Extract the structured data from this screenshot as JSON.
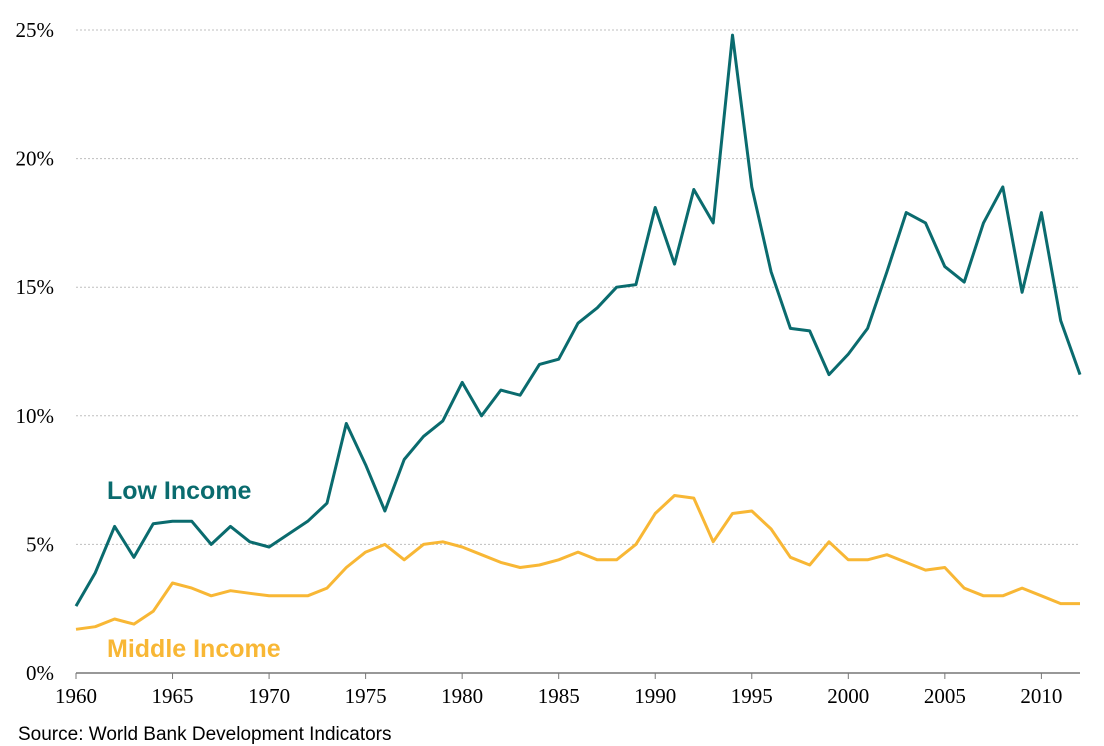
{
  "chart_data": {
    "type": "line",
    "source": "Source: World Bank Development Indicators",
    "x": [
      1960,
      1961,
      1962,
      1963,
      1964,
      1965,
      1966,
      1967,
      1968,
      1969,
      1970,
      1971,
      1972,
      1973,
      1974,
      1975,
      1976,
      1977,
      1978,
      1979,
      1980,
      1981,
      1982,
      1983,
      1984,
      1985,
      1986,
      1987,
      1988,
      1989,
      1990,
      1991,
      1992,
      1993,
      1994,
      1995,
      1996,
      1997,
      1998,
      1999,
      2000,
      2001,
      2002,
      2003,
      2004,
      2005,
      2006,
      2007,
      2008,
      2009,
      2010,
      2011,
      2012
    ],
    "series": [
      {
        "name": "Low Income",
        "color": "#0a6b6e",
        "values": [
          2.6,
          3.9,
          5.7,
          4.5,
          5.8,
          5.9,
          5.9,
          5.0,
          5.7,
          5.1,
          4.9,
          5.4,
          5.9,
          6.6,
          9.7,
          8.1,
          6.3,
          8.3,
          9.2,
          9.8,
          11.3,
          10.0,
          11.0,
          10.8,
          12.0,
          12.2,
          13.6,
          14.2,
          15.0,
          15.1,
          18.1,
          15.9,
          18.8,
          17.5,
          24.8,
          18.9,
          15.6,
          13.4,
          13.3,
          11.6,
          12.4,
          13.4,
          15.6,
          17.9,
          17.5,
          15.8,
          15.2,
          17.5,
          18.9,
          14.8,
          17.9,
          13.7,
          11.6
        ]
      },
      {
        "name": "Middle Income",
        "color": "#f8b735",
        "values": [
          1.7,
          1.8,
          2.1,
          1.9,
          2.4,
          3.5,
          3.3,
          3.0,
          3.2,
          3.1,
          3.0,
          3.0,
          3.0,
          3.3,
          4.1,
          4.7,
          5.0,
          4.4,
          5.0,
          5.1,
          4.9,
          4.6,
          4.3,
          4.1,
          4.2,
          4.4,
          4.7,
          4.4,
          4.4,
          5.0,
          6.2,
          6.9,
          6.8,
          5.1,
          6.2,
          6.3,
          5.6,
          4.5,
          4.2,
          5.1,
          4.4,
          4.4,
          4.6,
          4.3,
          4.0,
          4.1,
          3.3,
          3.0,
          3.0,
          3.3,
          3.0,
          2.7,
          2.7
        ]
      }
    ],
    "xlim": [
      1960,
      2012
    ],
    "xticks": [
      1960,
      1965,
      1970,
      1975,
      1980,
      1985,
      1990,
      1995,
      2000,
      2005,
      2010
    ],
    "ylim": [
      0,
      25
    ],
    "yticks": [
      {
        "value": 0,
        "label": "0%"
      },
      {
        "value": 5,
        "label": "5%"
      },
      {
        "value": 10,
        "label": "10%"
      },
      {
        "value": 15,
        "label": "15%"
      },
      {
        "value": 20,
        "label": "20%"
      },
      {
        "value": 25,
        "label": "25%"
      }
    ],
    "grid": true
  }
}
